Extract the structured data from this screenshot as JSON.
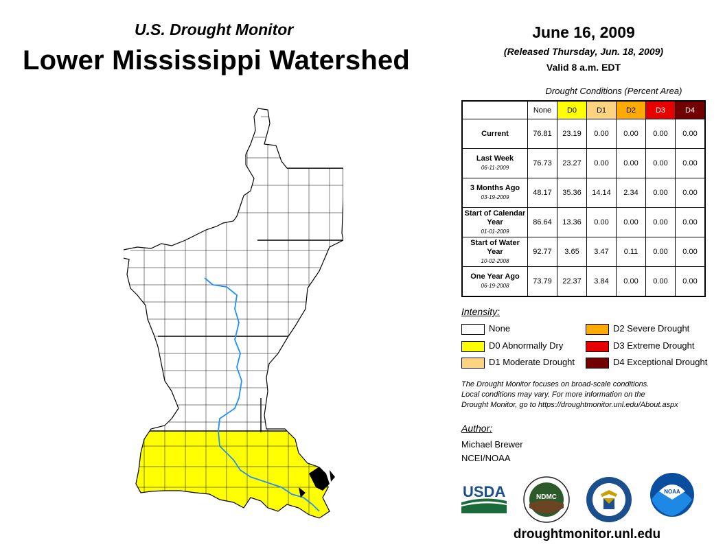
{
  "header": {
    "supertitle": "U.S. Drought Monitor",
    "title": "Lower Mississippi Watershed",
    "date": "June 16, 2009",
    "released": "(Released Thursday, Jun. 18, 2009)",
    "valid": "Valid 8 a.m. EDT"
  },
  "table": {
    "caption": "Drought Conditions (Percent Area)",
    "columns": [
      {
        "label": "None",
        "color": "#ffffff"
      },
      {
        "label": "D0",
        "color": "#ffff00"
      },
      {
        "label": "D1",
        "color": "#fcd37f"
      },
      {
        "label": "D2",
        "color": "#ffaa00"
      },
      {
        "label": "D3",
        "color": "#e60000"
      },
      {
        "label": "D4",
        "color": "#730000"
      }
    ],
    "rows": [
      {
        "label": "Current",
        "date": "",
        "values": [
          "76.81",
          "23.19",
          "0.00",
          "0.00",
          "0.00",
          "0.00"
        ]
      },
      {
        "label": "Last Week",
        "date": "06-11-2009",
        "values": [
          "76.73",
          "23.27",
          "0.00",
          "0.00",
          "0.00",
          "0.00"
        ]
      },
      {
        "label": "3 Months Ago",
        "date": "03-19-2009",
        "values": [
          "48.17",
          "35.36",
          "14.14",
          "2.34",
          "0.00",
          "0.00"
        ]
      },
      {
        "label": "Start of Calendar Year",
        "date": "01-01-2009",
        "values": [
          "86.64",
          "13.36",
          "0.00",
          "0.00",
          "0.00",
          "0.00"
        ]
      },
      {
        "label": "Start of Water Year",
        "date": "10-02-2008",
        "values": [
          "92.77",
          "3.65",
          "3.47",
          "0.11",
          "0.00",
          "0.00"
        ]
      },
      {
        "label": "One Year Ago",
        "date": "06-19-2008",
        "values": [
          "73.79",
          "22.37",
          "3.84",
          "0.00",
          "0.00",
          "0.00"
        ]
      }
    ]
  },
  "legend": {
    "title": "Intensity:",
    "items": [
      {
        "label": "None",
        "color": "#ffffff"
      },
      {
        "label": "D0 Abnormally Dry",
        "color": "#ffff00"
      },
      {
        "label": "D1 Moderate Drought",
        "color": "#fcd37f"
      },
      {
        "label": "D2 Severe Drought",
        "color": "#ffaa00"
      },
      {
        "label": "D3 Extreme Drought",
        "color": "#e60000"
      },
      {
        "label": "D4 Exceptional Drought",
        "color": "#730000"
      }
    ]
  },
  "note": {
    "line1": "The Drought Monitor focuses on broad-scale conditions.",
    "line2": "Local conditions may vary. For more information on the",
    "line3": "Drought Monitor, go to https://droughtmonitor.unl.edu/About.aspx"
  },
  "author": {
    "title": "Author:",
    "name": "Michael Brewer",
    "org": "NCEI/NOAA"
  },
  "logos": {
    "usda": "USDA",
    "ndmc": "NDMC",
    "noaa": "NOAA"
  },
  "footer": {
    "url": "droughtmonitor.unl.edu"
  },
  "map": {
    "drought_color": "#ffff00",
    "river_color": "#1e90ff"
  }
}
